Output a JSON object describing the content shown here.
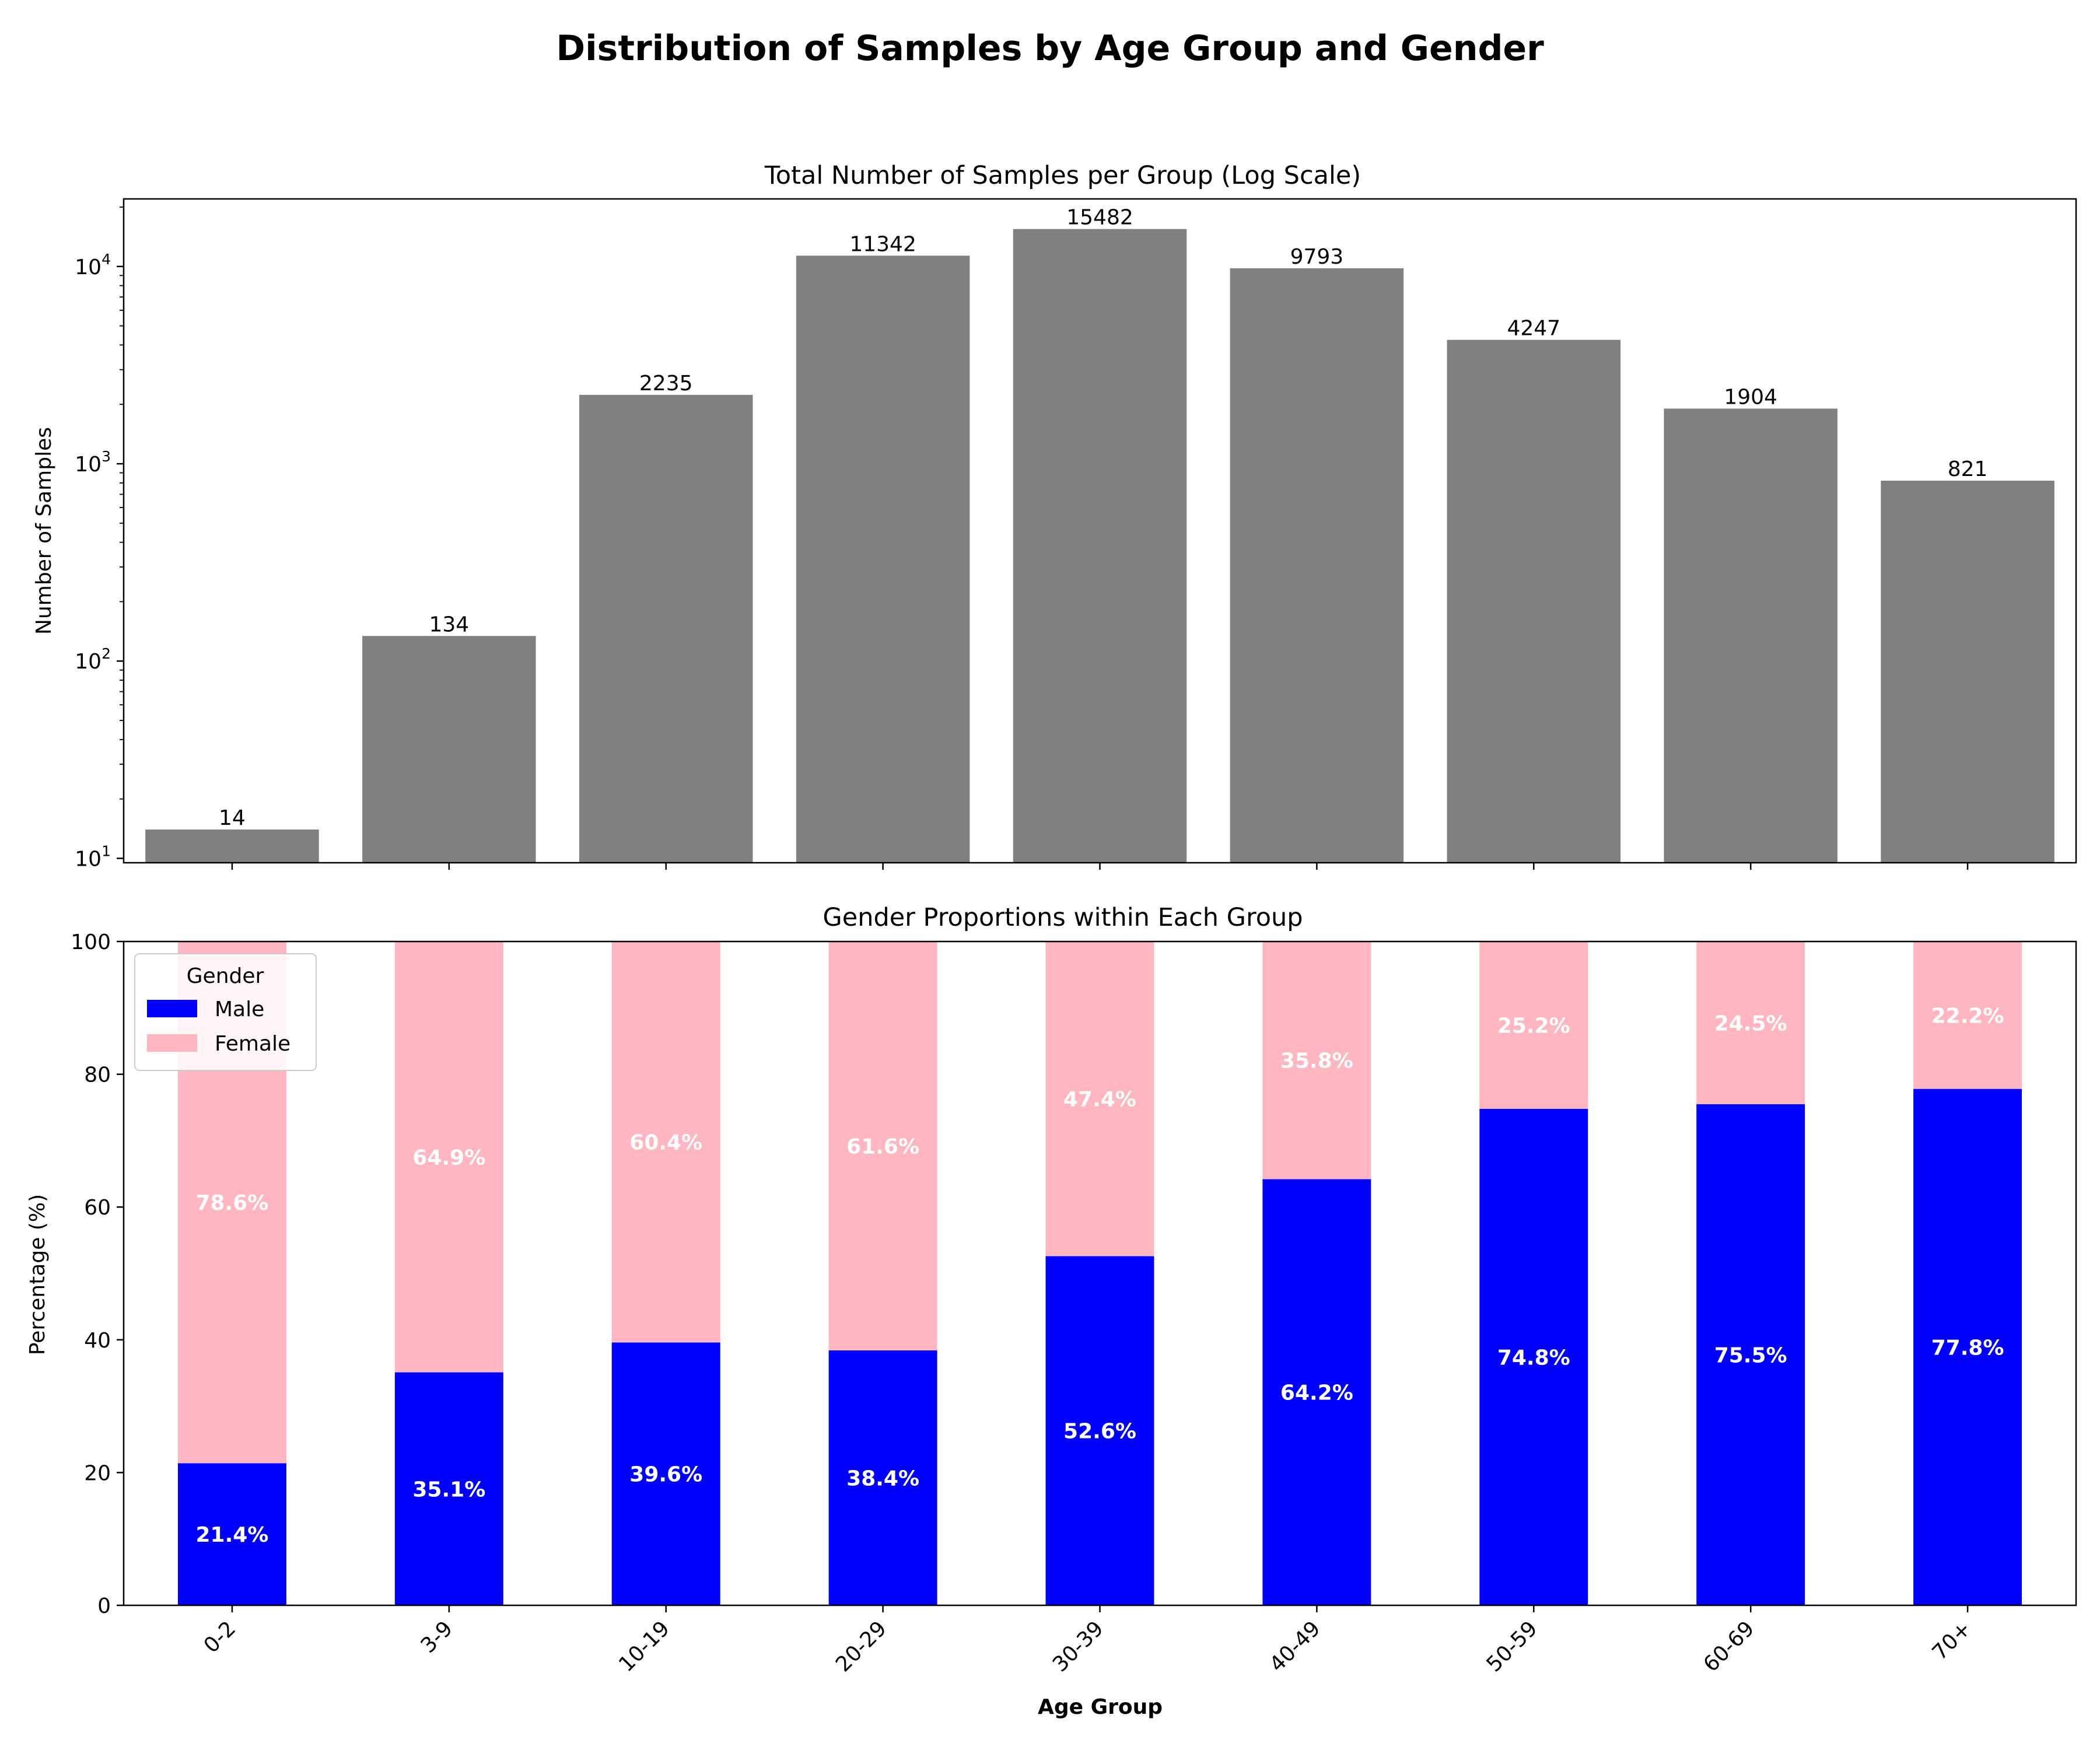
{
  "figure_title": "Distribution of Samples by Age Group and Gender",
  "chart_data": [
    {
      "type": "bar",
      "title": "Total Number of Samples per Group (Log Scale)",
      "xlabel": "",
      "ylabel": "Number of Samples",
      "yscale": "log",
      "ylim": [
        9.5,
        22000
      ],
      "yticks": [
        10,
        100,
        1000,
        10000
      ],
      "ytick_labels": [
        {
          "base": "10",
          "exp": "1"
        },
        {
          "base": "10",
          "exp": "2"
        },
        {
          "base": "10",
          "exp": "3"
        },
        {
          "base": "10",
          "exp": "4"
        }
      ],
      "categories": [
        "0-2",
        "3-9",
        "10-19",
        "20-29",
        "30-39",
        "40-49",
        "50-59",
        "60-69",
        "70+"
      ],
      "values": [
        14,
        134,
        2235,
        11342,
        15482,
        9793,
        4247,
        1904,
        821
      ],
      "data_labels": [
        "14",
        "134",
        "2235",
        "11342",
        "15482",
        "9793",
        "4247",
        "1904",
        "821"
      ],
      "bar_color": "#808080",
      "grid": false
    },
    {
      "type": "bar",
      "stacked": true,
      "title": "Gender Proportions within Each Group",
      "xlabel": "Age Group",
      "ylabel": "Percentage (%)",
      "ylim": [
        0,
        100
      ],
      "yticks": [
        0,
        20,
        40,
        60,
        80,
        100
      ],
      "categories": [
        "0-2",
        "3-9",
        "10-19",
        "20-29",
        "30-39",
        "40-49",
        "50-59",
        "60-69",
        "70+"
      ],
      "series": [
        {
          "name": "Male",
          "color": "#0000ff",
          "values": [
            21.4,
            35.1,
            39.6,
            38.4,
            52.6,
            64.2,
            74.8,
            75.5,
            77.8
          ],
          "labels": [
            "21.4%",
            "35.1%",
            "39.6%",
            "38.4%",
            "52.6%",
            "64.2%",
            "74.8%",
            "75.5%",
            "77.8%"
          ]
        },
        {
          "name": "Female",
          "color": "#ffb6c1",
          "values": [
            78.6,
            64.9,
            60.4,
            61.6,
            47.4,
            35.8,
            25.2,
            24.5,
            22.2
          ],
          "labels": [
            "78.6%",
            "64.9%",
            "60.4%",
            "61.6%",
            "47.4%",
            "35.8%",
            "25.2%",
            "24.5%",
            "22.2%"
          ]
        }
      ],
      "legend": {
        "title": "Gender",
        "position": "upper-left"
      },
      "grid": false
    }
  ]
}
